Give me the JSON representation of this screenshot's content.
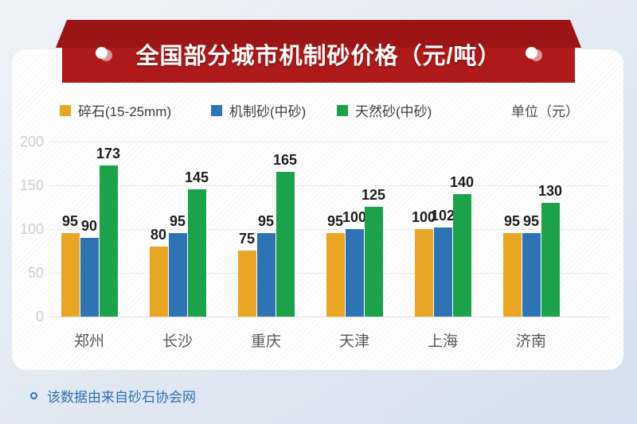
{
  "banner": {
    "title": "全国部分城市机制砂价格（元/吨）",
    "color_main": "#ae1a1a",
    "color_dark": "#9b1516"
  },
  "legend": {
    "items": [
      {
        "label": "碎石(15-25mm)",
        "color": "#e9a624"
      },
      {
        "label": "机制砂(中砂)",
        "color": "#2e74b5"
      },
      {
        "label": "天然砂(中砂)",
        "color": "#1ba24b"
      }
    ],
    "unit_label": "单位（元）"
  },
  "chart_data": {
    "type": "bar",
    "title": "全国部分城市机制砂价格（元/吨）",
    "categories": [
      "郑州",
      "长沙",
      "重庆",
      "天津",
      "上海",
      "济南"
    ],
    "series": [
      {
        "name": "碎石(15-25mm)",
        "color": "#e9a624",
        "values": [
          95,
          80,
          75,
          95,
          100,
          95
        ]
      },
      {
        "name": "机制砂(中砂)",
        "color": "#2e74b5",
        "values": [
          90,
          95,
          95,
          100,
          102,
          95
        ]
      },
      {
        "name": "天然砂(中砂)",
        "color": "#1ba24b",
        "values": [
          173,
          145,
          165,
          125,
          140,
          130
        ]
      }
    ],
    "xlabel": "",
    "ylabel": "元",
    "ylim": [
      0,
      200
    ],
    "yticks": [
      0,
      50,
      100,
      150,
      200
    ],
    "grid": true,
    "legend_position": "top"
  },
  "footer": {
    "note": "该数据由来自砂石协会网"
  }
}
